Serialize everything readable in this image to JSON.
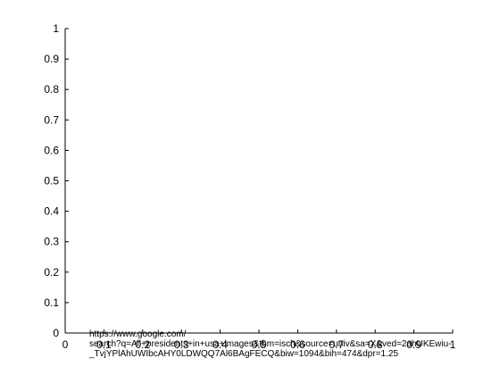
{
  "colors": {
    "axis": "#000000",
    "background": "#ffffff",
    "text": "#000000"
  },
  "chart_data": {
    "type": "line",
    "title": "",
    "xlabel": "",
    "ylabel": "",
    "xlim": [
      0,
      1
    ],
    "ylim": [
      0,
      1
    ],
    "xticks": [
      0,
      0.1,
      0.2,
      0.3,
      0.4,
      0.5,
      0.6,
      0.7,
      0.8,
      0.9,
      1
    ],
    "xtick_labels": [
      "0",
      "0.1",
      "0.2",
      "0.3",
      "0.4",
      "0.5",
      "0.6",
      "0.7",
      "0.8",
      "0.9",
      "1"
    ],
    "yticks": [
      0,
      0.1,
      0.2,
      0.3,
      0.4,
      0.5,
      0.6,
      0.7,
      0.8,
      0.9,
      1
    ],
    "ytick_labels": [
      "0",
      "0.1",
      "0.2",
      "0.3",
      "0.4",
      "0.5",
      "0.6",
      "0.7",
      "0.8",
      "0.9",
      "1"
    ],
    "grid": false,
    "series": []
  },
  "overlay_text": {
    "line1": "https://www.google.com/",
    "line2": "search?q=All+presidents+in+usa+images&tbm=isch&source=univ&sa=X&ved=2ahUKEwiu-",
    "line3": "_TvjYPlAhUWIbcAHY0LDWQQ7Al6BAgFECQ&biw=1094&bih=474&dpr=1.25"
  }
}
